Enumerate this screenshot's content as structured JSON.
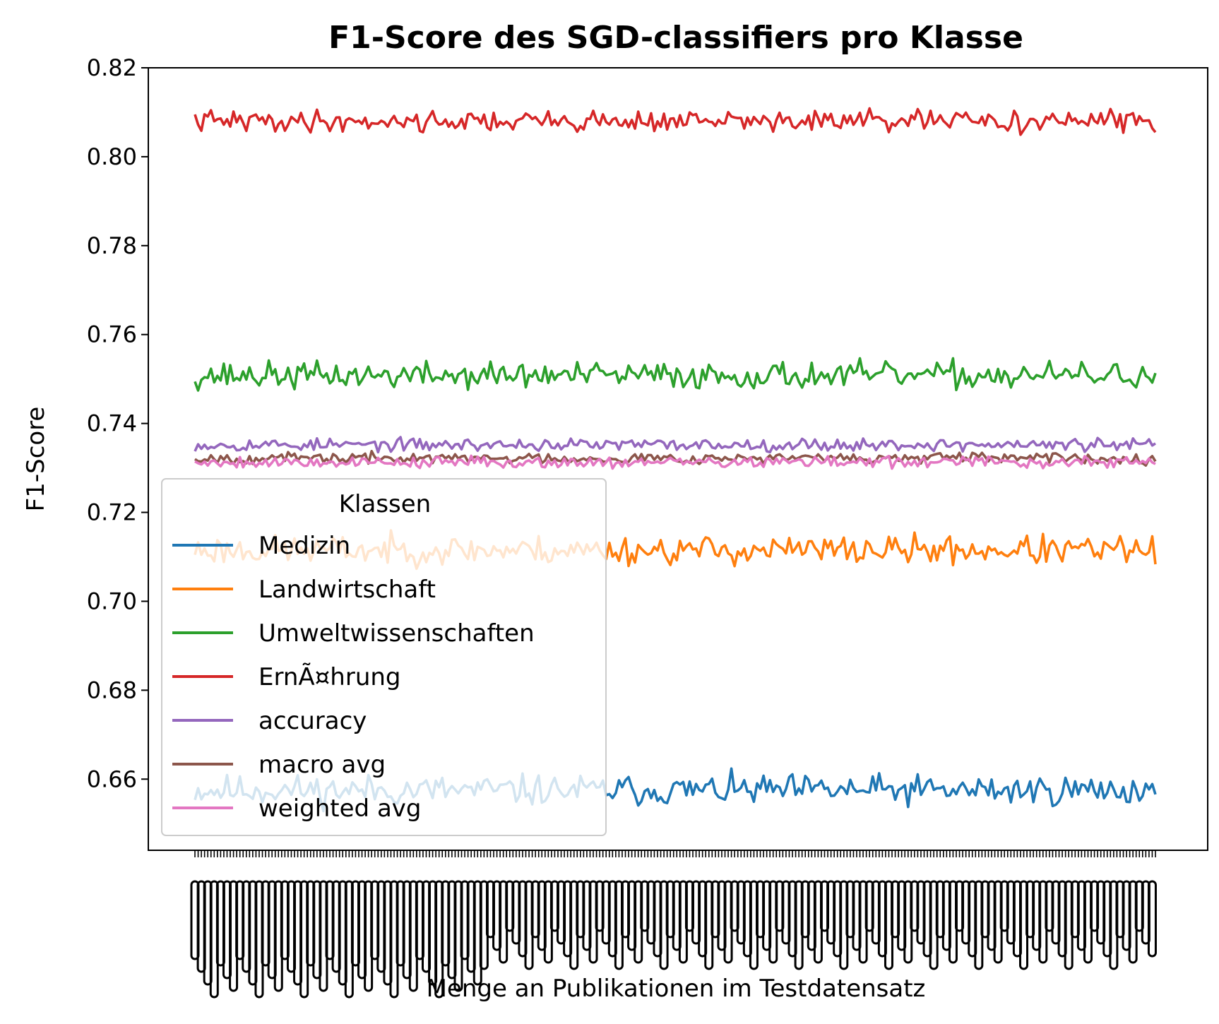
{
  "chart_data": {
    "type": "line",
    "title": "F1-Score des SGD-classifiers pro Klasse",
    "xlabel": "Menge an Publikationen im Testdatensatz",
    "ylabel": "F1-Score",
    "ylim": [
      0.644,
      0.82
    ],
    "yticks": [
      "0.66",
      "0.68",
      "0.70",
      "0.72",
      "0.74",
      "0.76",
      "0.78",
      "0.80",
      "0.82"
    ],
    "x_points": 300,
    "legend": {
      "title": "Klassen",
      "placement": "lower-left"
    },
    "grid": false,
    "series": [
      {
        "name": "Medizin",
        "color": "#1f77b4",
        "base": 0.6575,
        "amp": 0.0032,
        "seed": 11
      },
      {
        "name": "Landwirtschaft",
        "color": "#ff7f0e",
        "base": 0.7115,
        "amp": 0.003,
        "seed": 23
      },
      {
        "name": "Umweltwissenschaften",
        "color": "#2ca02c",
        "base": 0.7508,
        "amp": 0.0028,
        "seed": 37
      },
      {
        "name": "ErnÃ¤hrung",
        "color": "#d62728",
        "base": 0.808,
        "amp": 0.0022,
        "seed": 41
      },
      {
        "name": "accuracy",
        "color": "#9467bd",
        "base": 0.7352,
        "amp": 0.0013,
        "seed": 53
      },
      {
        "name": "macro avg",
        "color": "#8c564b",
        "base": 0.7322,
        "amp": 0.0011,
        "seed": 67
      },
      {
        "name": "weighted avg",
        "color": "#e377c2",
        "base": 0.7313,
        "amp": 0.0012,
        "seed": 79
      }
    ]
  }
}
